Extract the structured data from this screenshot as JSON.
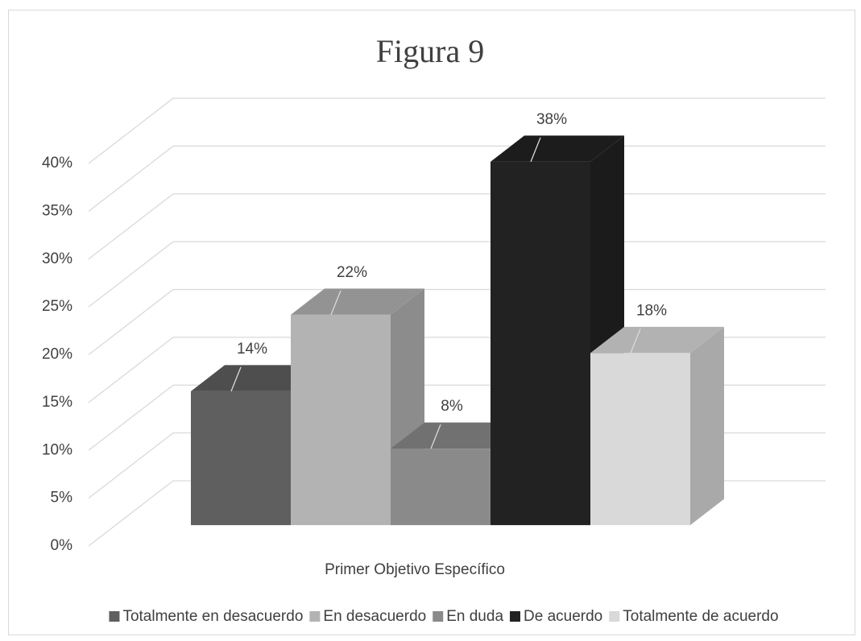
{
  "chart_data": {
    "type": "bar3d",
    "title": "Figura 9",
    "categories": [
      "Primer Objetivo Específico"
    ],
    "series": [
      {
        "name": "Totalmente en desacuerdo",
        "color": "#5f5f5f",
        "values": [
          14
        ],
        "value_labels": [
          "14%"
        ]
      },
      {
        "name": "En desacuerdo",
        "color": "#b3b3b3",
        "values": [
          22
        ],
        "value_labels": [
          "22%"
        ]
      },
      {
        "name": "En duda",
        "color": "#8a8a8a",
        "values": [
          8
        ],
        "value_labels": [
          "8%"
        ]
      },
      {
        "name": "De acuerdo",
        "color": "#222222",
        "values": [
          38
        ],
        "value_labels": [
          "38%"
        ]
      },
      {
        "name": "Totalmente de acuerdo",
        "color": "#d9d9d9",
        "values": [
          18
        ],
        "value_labels": [
          "18%"
        ]
      }
    ],
    "ylim": [
      0,
      40
    ],
    "yticks": [
      {
        "value": 0,
        "label": "0%"
      },
      {
        "value": 5,
        "label": "5%"
      },
      {
        "value": 10,
        "label": "10%"
      },
      {
        "value": 15,
        "label": "15%"
      },
      {
        "value": 20,
        "label": "20%"
      },
      {
        "value": 25,
        "label": "25%"
      },
      {
        "value": 30,
        "label": "30%"
      },
      {
        "value": 35,
        "label": "35%"
      },
      {
        "value": 40,
        "label": "40%"
      }
    ],
    "grid": true,
    "legend": "bottom"
  }
}
